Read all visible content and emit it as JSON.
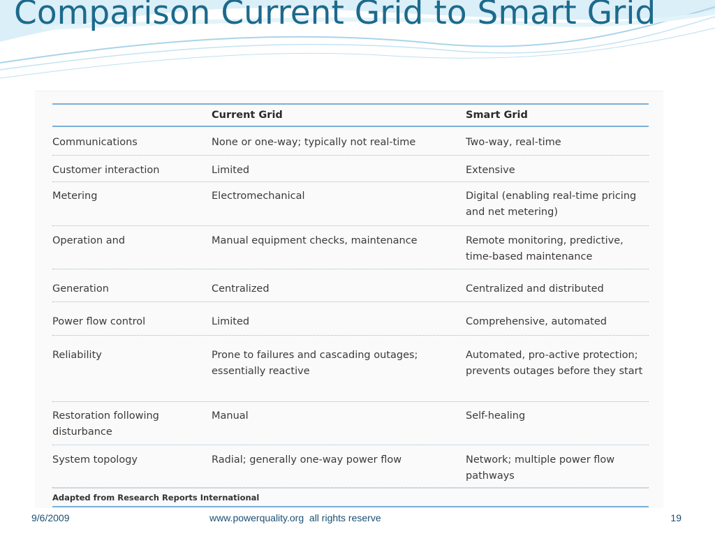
{
  "slide": {
    "title": "Comparison Current Grid to Smart Grid"
  },
  "table": {
    "columns": [
      "",
      "Current Grid",
      "Smart Grid"
    ],
    "rows": [
      {
        "feature": "Communications",
        "current": "None or one-way; typically not real-time",
        "smart": "Two-way, real-time"
      },
      {
        "feature": "Customer interaction",
        "current": "Limited",
        "smart": "Extensive"
      },
      {
        "feature": "Metering",
        "current": "Electromechanical",
        "smart": "Digital (enabling real-time pricing and net metering)"
      },
      {
        "feature": "Operation and",
        "current": "Manual equipment checks, maintenance",
        "smart": "Remote monitoring, predictive, time-based maintenance"
      },
      {
        "feature": "Generation",
        "current": "Centralized",
        "smart": "Centralized and distributed"
      },
      {
        "feature": "Power flow control",
        "current": "Limited",
        "smart": "Comprehensive, automated"
      },
      {
        "feature": "Reliability",
        "current": "Prone to failures and cascading outages; essentially reactive",
        "smart": "Automated, pro-active protection; prevents outages before they start"
      },
      {
        "feature": "Restoration following disturbance",
        "current": "Manual",
        "smart": "Self-healing"
      },
      {
        "feature": "System topology",
        "current": "Radial; generally one-way power flow",
        "smart": "Network; multiple power flow pathways"
      }
    ],
    "source_note": "Adapted from Research Reports International"
  },
  "footer": {
    "date": "9/6/2009",
    "center": "www.powerquality.org  all rights reserve",
    "page": "19"
  },
  "colors": {
    "title": "#1c6a8c",
    "rule": "#7aaed6",
    "swoosh": "#a8d4ea"
  }
}
